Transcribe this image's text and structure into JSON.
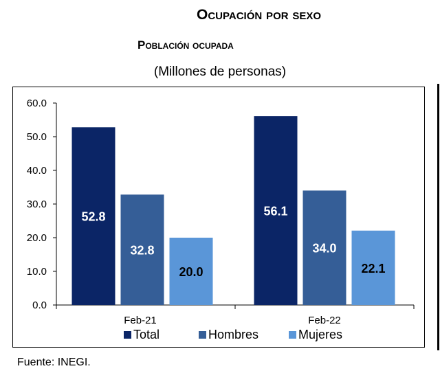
{
  "chart_data": {
    "type": "bar",
    "title": "Ocupación por sexo",
    "subtitle": "Población ocupada",
    "units_label": "(Millones de personas)",
    "categories": [
      "Feb-21",
      "Feb-22"
    ],
    "series": [
      {
        "name": "Total",
        "values": [
          52.8,
          56.1
        ],
        "color": "#0b2566",
        "label_color": "#ffffff"
      },
      {
        "name": "Hombres",
        "values": [
          32.8,
          34.0
        ],
        "color": "#355e97",
        "label_color": "#ffffff"
      },
      {
        "name": "Mujeres",
        "values": [
          20.0,
          22.1
        ],
        "color": "#5a96d8",
        "label_color": "#000000"
      }
    ],
    "y_ticks": [
      "0.0",
      "10.0",
      "20.0",
      "30.0",
      "40.0",
      "50.0",
      "60.0"
    ],
    "ylim": [
      0,
      60
    ],
    "legend_position": "bottom",
    "grid": false
  },
  "source": "Fuente: INEGI."
}
